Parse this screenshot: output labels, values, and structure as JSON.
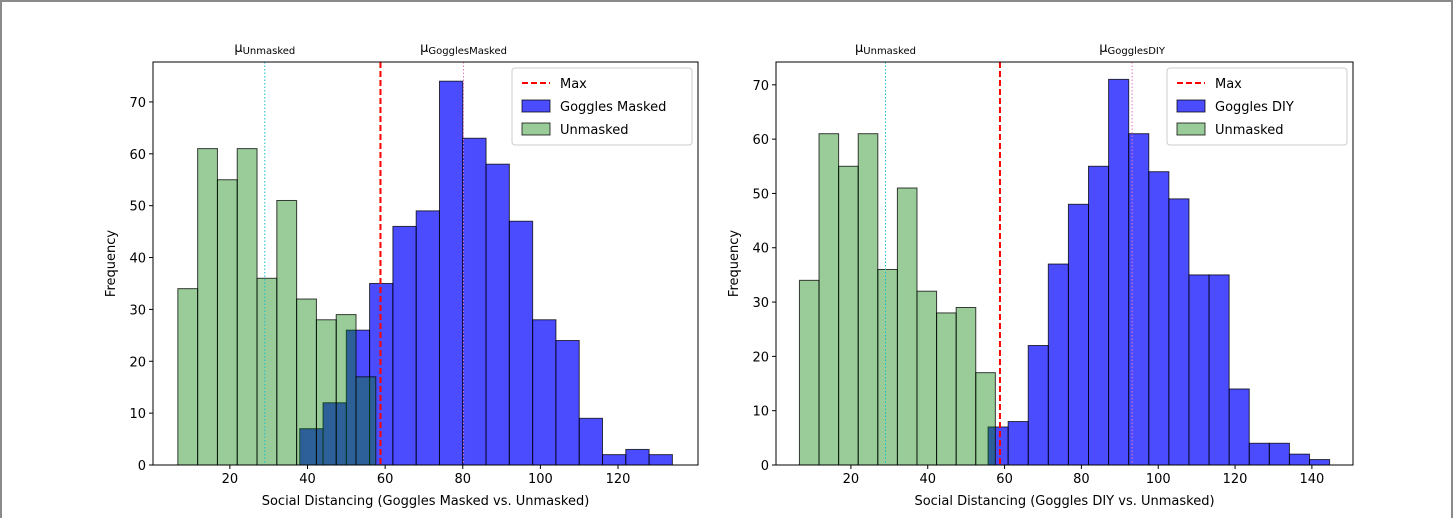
{
  "chart_data": [
    {
      "type": "histogram",
      "x_label": "Social Distancing (Goggles Masked vs. Unmasked)",
      "y_label": "Frequency",
      "xlim": [
        0.2,
        140.6
      ],
      "ylim": [
        0,
        77.7
      ],
      "xticks": [
        20,
        40,
        60,
        80,
        100,
        120
      ],
      "yticks": [
        0,
        10,
        20,
        30,
        40,
        50,
        60,
        70
      ],
      "legend": "upper right",
      "vlines": [
        {
          "name": "Max",
          "x": 58.8,
          "color": "#ff0000",
          "style": "dashed"
        }
      ],
      "annotations": [
        {
          "text": "μ",
          "sub": "Unmasked",
          "x": 29.0,
          "color": "#17becf"
        },
        {
          "text": "μ",
          "sub": "GogglesMasked",
          "x": 80.2,
          "color": "#e377c2"
        }
      ],
      "series": [
        {
          "name": "Goggles Masked",
          "color": "#0000ff",
          "opacity": 0.7,
          "bins": [
            38,
            44,
            50,
            56,
            62,
            68,
            74,
            80,
            86,
            92,
            98,
            104,
            110,
            116,
            122,
            128,
            134
          ],
          "values": [
            7,
            12,
            26,
            35,
            46,
            49,
            74,
            63,
            58,
            47,
            28,
            24,
            9,
            2,
            3,
            2
          ]
        },
        {
          "name": "Unmasked",
          "color": "#008000",
          "opacity": 0.4,
          "bins": [
            6.6,
            11.7,
            16.8,
            21.9,
            27.0,
            32.1,
            37.2,
            42.3,
            47.4,
            52.5,
            57.6
          ],
          "values": [
            34,
            61,
            55,
            61,
            36,
            51,
            32,
            28,
            29,
            17
          ]
        }
      ]
    },
    {
      "type": "histogram",
      "x_label": "Social Distancing (Goggles DIY vs. Unmasked)",
      "y_label": "Frequency",
      "xlim": [
        0.5,
        150.7
      ],
      "ylim": [
        0,
        74.2
      ],
      "xticks": [
        20,
        40,
        60,
        80,
        100,
        120,
        140
      ],
      "yticks": [
        0,
        10,
        20,
        30,
        40,
        50,
        60,
        70
      ],
      "legend": "upper right",
      "vlines": [
        {
          "name": "Max",
          "x": 58.8,
          "color": "#ff0000",
          "style": "dashed"
        }
      ],
      "annotations": [
        {
          "text": "μ",
          "sub": "Unmasked",
          "x": 29.0,
          "color": "#17becf"
        },
        {
          "text": "μ",
          "sub": "GogglesDIY",
          "x": 93.2,
          "color": "#e377c2"
        }
      ],
      "series": [
        {
          "name": "Goggles DIY",
          "color": "#0000ff",
          "opacity": 0.7,
          "bins": [
            55.7,
            60.93,
            66.16,
            71.39,
            76.62,
            81.85,
            87.08,
            92.31,
            97.54,
            102.77,
            108.0,
            113.23,
            118.46,
            123.69,
            128.92,
            134.15,
            139.38,
            144.61
          ],
          "values": [
            7,
            8,
            22,
            37,
            48,
            55,
            71,
            61,
            54,
            49,
            35,
            35,
            14,
            4,
            4,
            2,
            1
          ]
        },
        {
          "name": "Unmasked",
          "color": "#008000",
          "opacity": 0.4,
          "bins": [
            6.6,
            11.7,
            16.8,
            21.9,
            27.0,
            32.1,
            37.2,
            42.3,
            47.4,
            52.5,
            57.6
          ],
          "values": [
            34,
            61,
            55,
            61,
            36,
            51,
            32,
            28,
            29,
            17
          ]
        }
      ]
    }
  ]
}
